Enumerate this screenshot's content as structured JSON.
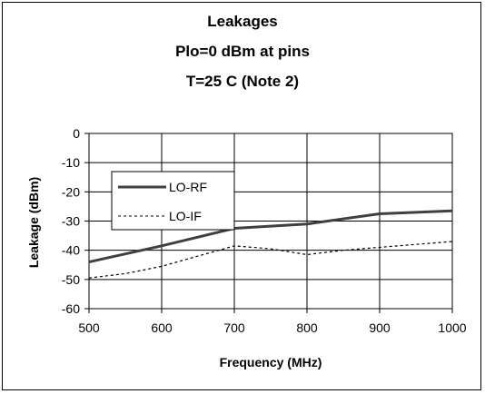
{
  "chart_data": {
    "type": "line",
    "title_lines": [
      "Leakages",
      "Plo=0 dBm at pins",
      "T=25 C (Note 2)"
    ],
    "xlabel": "Frequency (MHz)",
    "ylabel": "Leakage (dBm)",
    "x": [
      500,
      600,
      700,
      800,
      900,
      1000
    ],
    "xlim": [
      500,
      1000
    ],
    "ylim": [
      -60,
      0
    ],
    "x_ticks": [
      "500",
      "600",
      "700",
      "800",
      "900",
      "1000"
    ],
    "y_ticks": [
      "0",
      "-10",
      "-20",
      "-30",
      "-40",
      "-50",
      "-60"
    ],
    "grid": true,
    "legend_position": "upper-left inside plot",
    "series": [
      {
        "name": "LO-RF",
        "style": "solid",
        "color": "#404040",
        "x": [
          500,
          600,
          700,
          800,
          900,
          1000
        ],
        "values": [
          -44,
          -38.5,
          -32.5,
          -31,
          -27.5,
          -26.5
        ]
      },
      {
        "name": "LO-IF",
        "style": "dashed",
        "color": "#000000",
        "x": [
          500,
          550,
          600,
          650,
          700,
          750,
          800,
          850,
          900,
          950,
          1000
        ],
        "values": [
          -49.5,
          -48,
          -45.5,
          -42,
          -38.5,
          -39.5,
          -41.5,
          -40,
          -39,
          -38,
          -37
        ]
      }
    ]
  }
}
